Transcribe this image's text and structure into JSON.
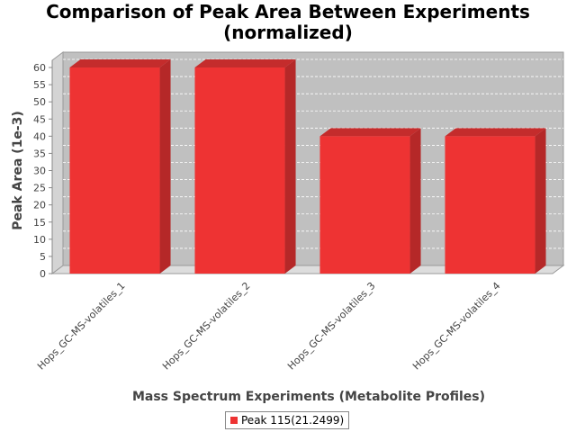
{
  "chart_data": {
    "type": "bar",
    "title_line1": "Comparison of Peak Area Between Experiments",
    "title_line2": "(normalized)",
    "xlabel": "Mass Spectrum Experiments (Metabolite Profiles)",
    "ylabel": "Peak Area (1e-3)",
    "categories": [
      "Hops_GC-MS-volatiles_1",
      "Hops_GC-MS-volatiles_2",
      "Hops_GC-MS-volatiles_3",
      "Hops_GC-MS-volatiles_4"
    ],
    "series": [
      {
        "name": "Peak 115(21.2499)",
        "values": [
          60,
          60,
          40,
          40
        ],
        "color": "#ee3333"
      }
    ],
    "ylim": [
      0,
      60
    ],
    "yticks": [
      0,
      5,
      10,
      15,
      20,
      25,
      30,
      35,
      40,
      45,
      50,
      55,
      60
    ],
    "grid": true,
    "legend_position": "bottom",
    "style": "3d-bar",
    "plot_background": "#c0c0c0"
  }
}
